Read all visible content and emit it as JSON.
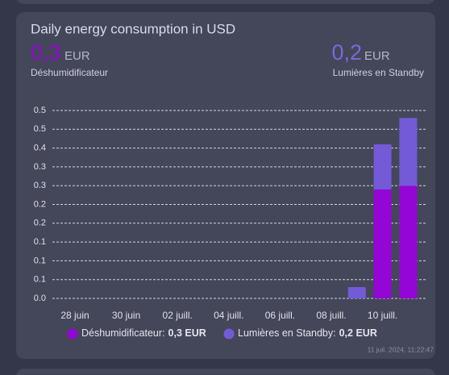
{
  "chart_data": {
    "type": "bar",
    "stacked": true,
    "title": "Daily energy consumption in USD",
    "header": [
      {
        "value": "0,3",
        "unit": "EUR"
      },
      {
        "value": "0,2",
        "unit": "EUR"
      }
    ],
    "categories": [
      null,
      "28 juin",
      null,
      "30 juin",
      null,
      "02 juill.",
      null,
      "04 juill.",
      null,
      "06 juill.",
      null,
      "08 juill.",
      null,
      "10 juill.",
      null
    ],
    "series": [
      {
        "name": "Déshumidificateur",
        "color": "#9406d6",
        "values": [
          null,
          null,
          null,
          null,
          null,
          null,
          null,
          null,
          null,
          null,
          null,
          null,
          null,
          0.29,
          0.3
        ]
      },
      {
        "name": "Lumières en Standby",
        "color": "#735bd8",
        "values": [
          null,
          null,
          null,
          null,
          null,
          null,
          null,
          null,
          null,
          null,
          null,
          null,
          0.03,
          0.12,
          0.18
        ]
      }
    ],
    "legend": [
      {
        "label": "Déshumidificateur:",
        "value": "0,3 EUR"
      },
      {
        "label": "Lumières en Standby:",
        "value": "0,2 EUR"
      }
    ],
    "ylim": [
      0,
      0.5
    ],
    "yticks": [
      {
        "value": 0,
        "label": "0.0"
      },
      {
        "value": 0.05,
        "label": "0.1"
      },
      0.1,
      {
        "value": 0.15,
        "label": "0.1"
      },
      0.2,
      {
        "value": 0.25,
        "label": "0.2"
      },
      0.3,
      {
        "value": 0.35,
        "label": "0.3"
      },
      0.4,
      {
        "value": 0.45,
        "label": "0.5"
      },
      0.5
    ],
    "grid": true,
    "timestamp": "11 juil. 2024, 11:22:47"
  }
}
